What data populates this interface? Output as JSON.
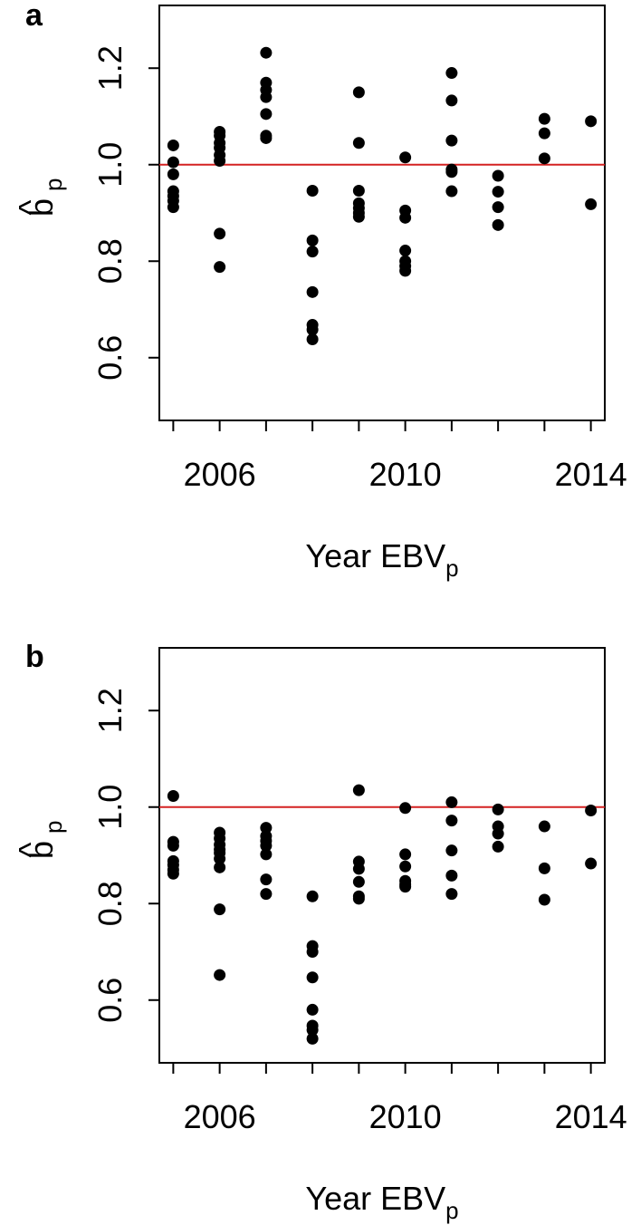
{
  "chart_data": [
    {
      "panel_label": "a",
      "type": "scatter",
      "xlabel": "Year EBV",
      "xlabel_sub": "p",
      "ylabel": "b",
      "ylabel_hat": "^",
      "ylabel_sub": "p",
      "xlim": [
        2004.7,
        2014.3
      ],
      "ylim": [
        0.47,
        1.33
      ],
      "x_ticks": [
        2005,
        2006,
        2007,
        2008,
        2009,
        2010,
        2011,
        2012,
        2013,
        2014
      ],
      "x_tick_labels": [
        {
          "value": 2006,
          "label": "2006"
        },
        {
          "value": 2010,
          "label": "2010"
        },
        {
          "value": 2014,
          "label": "2014"
        }
      ],
      "y_ticks": [
        0.6,
        0.8,
        1.0,
        1.2
      ],
      "y_tick_labels": [
        "0.6",
        "0.8",
        "1.0",
        "1.2"
      ],
      "reference_line": {
        "y": 1.0,
        "color": "#d42222"
      },
      "grid": false,
      "points": [
        {
          "x": 2005,
          "y": [
            1.04,
            1.005,
            0.98,
            0.945,
            0.935,
            0.925,
            0.912
          ]
        },
        {
          "x": 2006,
          "y": [
            1.068,
            1.06,
            1.045,
            1.035,
            1.02,
            1.008,
            0.857,
            0.788
          ]
        },
        {
          "x": 2007,
          "y": [
            1.232,
            1.17,
            1.155,
            1.14,
            1.105,
            1.06,
            1.055
          ]
        },
        {
          "x": 2008,
          "y": [
            0.946,
            0.843,
            0.82,
            0.736,
            0.668,
            0.658,
            0.638
          ]
        },
        {
          "x": 2009,
          "y": [
            1.15,
            1.045,
            0.946,
            0.92,
            0.91,
            0.9,
            0.892
          ]
        },
        {
          "x": 2010,
          "y": [
            1.015,
            0.905,
            0.89,
            0.822,
            0.8,
            0.79,
            0.78
          ]
        },
        {
          "x": 2011,
          "y": [
            1.19,
            1.133,
            1.05,
            0.99,
            0.985,
            0.945
          ]
        },
        {
          "x": 2012,
          "y": [
            0.977,
            0.944,
            0.912,
            0.875
          ]
        },
        {
          "x": 2013,
          "y": [
            1.095,
            1.065,
            1.013
          ]
        },
        {
          "x": 2014,
          "y": [
            1.09,
            0.918
          ]
        }
      ]
    },
    {
      "panel_label": "b",
      "type": "scatter",
      "xlabel": "Year EBV",
      "xlabel_sub": "p",
      "ylabel": "b",
      "ylabel_hat": "^",
      "ylabel_sub": "p",
      "xlim": [
        2004.7,
        2014.3
      ],
      "ylim": [
        0.47,
        1.33
      ],
      "x_ticks": [
        2005,
        2006,
        2007,
        2008,
        2009,
        2010,
        2011,
        2012,
        2013,
        2014
      ],
      "x_tick_labels": [
        {
          "value": 2006,
          "label": "2006"
        },
        {
          "value": 2010,
          "label": "2010"
        },
        {
          "value": 2014,
          "label": "2014"
        }
      ],
      "y_ticks": [
        0.6,
        0.8,
        1.0,
        1.2
      ],
      "y_tick_labels": [
        "0.6",
        "0.8",
        "1.0",
        "1.2"
      ],
      "reference_line": {
        "y": 1.0,
        "color": "#d42222"
      },
      "grid": false,
      "points": [
        {
          "x": 2005,
          "y": [
            1.023,
            0.928,
            0.92,
            0.888,
            0.88,
            0.87,
            0.862
          ]
        },
        {
          "x": 2006,
          "y": [
            0.947,
            0.935,
            0.922,
            0.912,
            0.905,
            0.893,
            0.875,
            0.788,
            0.652
          ]
        },
        {
          "x": 2007,
          "y": [
            0.957,
            0.94,
            0.93,
            0.92,
            0.902,
            0.85,
            0.82
          ]
        },
        {
          "x": 2008,
          "y": [
            0.815,
            0.712,
            0.7,
            0.647,
            0.58,
            0.547,
            0.538,
            0.52
          ]
        },
        {
          "x": 2009,
          "y": [
            1.035,
            0.887,
            0.872,
            0.845,
            0.815,
            0.81
          ]
        },
        {
          "x": 2010,
          "y": [
            0.998,
            0.902,
            0.877,
            0.847,
            0.84,
            0.835
          ]
        },
        {
          "x": 2011,
          "y": [
            1.01,
            0.972,
            0.91,
            0.858,
            0.82
          ]
        },
        {
          "x": 2012,
          "y": [
            0.995,
            0.96,
            0.945,
            0.918
          ]
        },
        {
          "x": 2013,
          "y": [
            0.96,
            0.873,
            0.808
          ]
        },
        {
          "x": 2014,
          "y": [
            0.993,
            0.883
          ]
        }
      ]
    }
  ]
}
